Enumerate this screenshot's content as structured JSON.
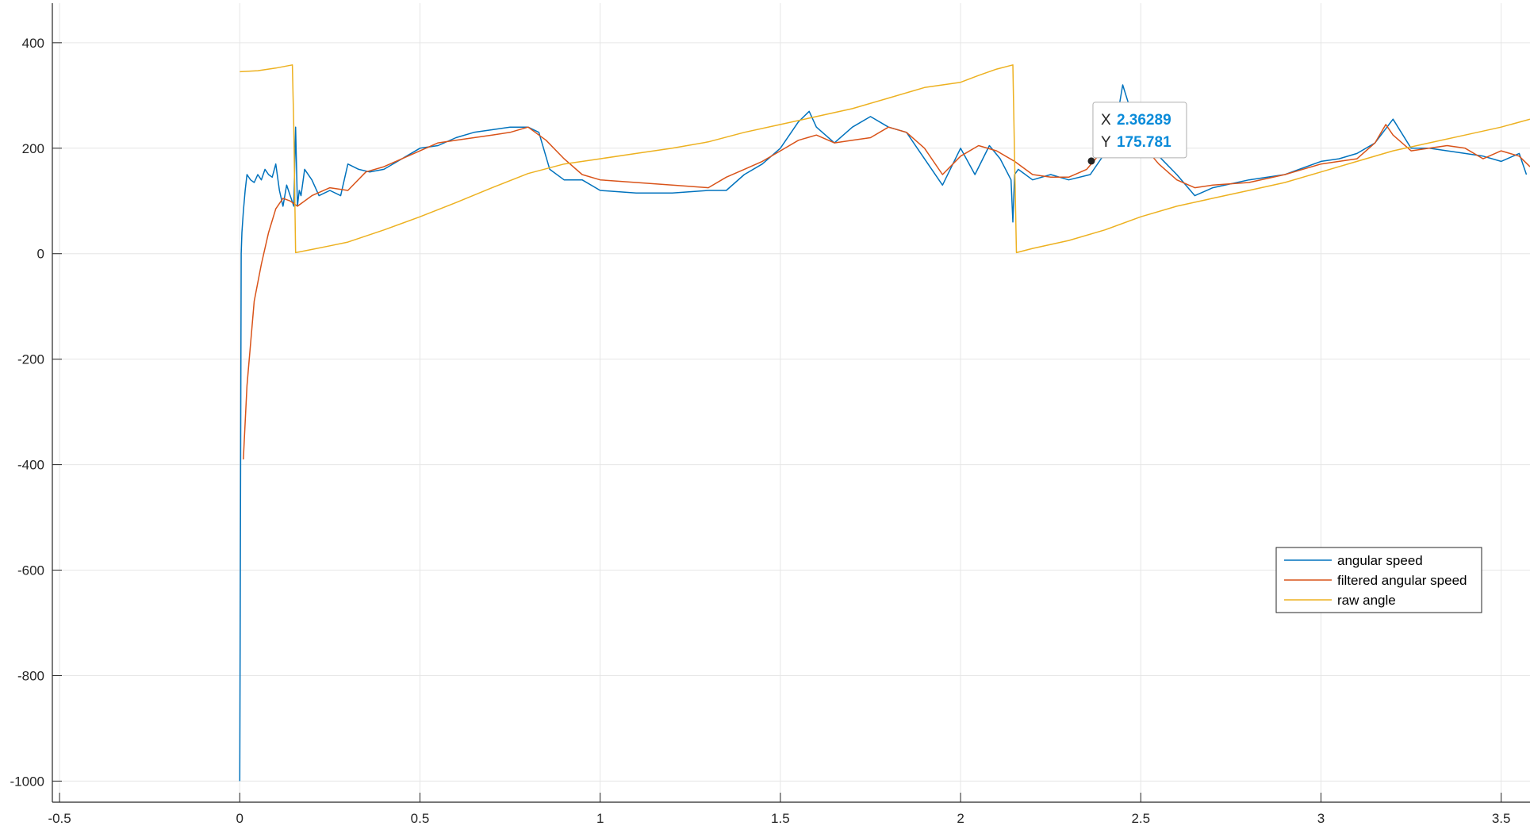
{
  "chart_data": {
    "type": "line",
    "title": "",
    "xlabel": "",
    "ylabel": "",
    "xlim": [
      -0.52,
      3.58
    ],
    "ylim": [
      -1040,
      475
    ],
    "grid": true,
    "x_ticks": [
      -0.5,
      0,
      0.5,
      1,
      1.5,
      2,
      2.5,
      3,
      3.5
    ],
    "x_tick_labels": [
      "-0.5",
      "0",
      "0.5",
      "1",
      "1.5",
      "2",
      "2.5",
      "3",
      "3.5"
    ],
    "y_ticks": [
      -1000,
      -800,
      -600,
      -400,
      -200,
      0,
      200,
      400
    ],
    "y_tick_labels": [
      "-1000",
      "-800",
      "-600",
      "-400",
      "-200",
      "0",
      "200",
      "400"
    ],
    "legend_position": "lower-right",
    "series": [
      {
        "name": "angular speed",
        "color": "#0072BD",
        "x": [
          0,
          0.002,
          0.004,
          0.006,
          0.01,
          0.015,
          0.02,
          0.03,
          0.04,
          0.05,
          0.06,
          0.07,
          0.08,
          0.09,
          0.1,
          0.11,
          0.12,
          0.13,
          0.14,
          0.15,
          0.155,
          0.16,
          0.165,
          0.17,
          0.18,
          0.2,
          0.22,
          0.25,
          0.28,
          0.3,
          0.33,
          0.36,
          0.4,
          0.45,
          0.5,
          0.55,
          0.6,
          0.65,
          0.7,
          0.75,
          0.8,
          0.83,
          0.86,
          0.9,
          0.95,
          1.0,
          1.1,
          1.2,
          1.3,
          1.35,
          1.4,
          1.45,
          1.5,
          1.55,
          1.58,
          1.6,
          1.65,
          1.7,
          1.75,
          1.8,
          1.85,
          1.88,
          1.92,
          1.95,
          2.0,
          2.04,
          2.08,
          2.11,
          2.14,
          2.145,
          2.15,
          2.16,
          2.2,
          2.25,
          2.3,
          2.36,
          2.4,
          2.43,
          2.45,
          2.5,
          2.55,
          2.6,
          2.65,
          2.7,
          2.8,
          2.9,
          3.0,
          3.05,
          3.1,
          3.15,
          3.2,
          3.25,
          3.3,
          3.4,
          3.45,
          3.5,
          3.55,
          3.57
        ],
        "y": [
          -1000,
          -500,
          0,
          40,
          80,
          120,
          150,
          140,
          135,
          150,
          140,
          160,
          150,
          145,
          170,
          120,
          90,
          130,
          110,
          90,
          240,
          90,
          120,
          110,
          160,
          140,
          110,
          120,
          110,
          170,
          160,
          155,
          160,
          180,
          200,
          205,
          220,
          230,
          235,
          240,
          240,
          230,
          160,
          140,
          140,
          120,
          115,
          115,
          120,
          120,
          150,
          170,
          200,
          250,
          270,
          240,
          210,
          240,
          260,
          240,
          230,
          200,
          160,
          130,
          200,
          150,
          205,
          180,
          140,
          60,
          150,
          160,
          140,
          150,
          140,
          150,
          190,
          240,
          320,
          210,
          185,
          150,
          110,
          125,
          140,
          150,
          175,
          180,
          190,
          210,
          255,
          200,
          200,
          190,
          185,
          175,
          190,
          150
        ]
      },
      {
        "name": "filtered angular speed",
        "color": "#D95319",
        "x": [
          0.01,
          0.02,
          0.04,
          0.06,
          0.08,
          0.1,
          0.12,
          0.14,
          0.16,
          0.2,
          0.25,
          0.3,
          0.35,
          0.4,
          0.45,
          0.5,
          0.55,
          0.6,
          0.65,
          0.7,
          0.75,
          0.8,
          0.85,
          0.9,
          0.95,
          1.0,
          1.1,
          1.2,
          1.3,
          1.35,
          1.4,
          1.45,
          1.5,
          1.55,
          1.6,
          1.65,
          1.7,
          1.75,
          1.8,
          1.85,
          1.9,
          1.95,
          2.0,
          2.05,
          2.1,
          2.15,
          2.2,
          2.25,
          2.3,
          2.35,
          2.4,
          2.43,
          2.46,
          2.5,
          2.55,
          2.6,
          2.65,
          2.7,
          2.8,
          2.9,
          3.0,
          3.05,
          3.1,
          3.15,
          3.18,
          3.2,
          3.25,
          3.3,
          3.35,
          3.4,
          3.45,
          3.5,
          3.55,
          3.58
        ],
        "y": [
          -390,
          -250,
          -90,
          -20,
          40,
          85,
          105,
          100,
          90,
          110,
          125,
          120,
          155,
          165,
          180,
          195,
          210,
          215,
          220,
          225,
          230,
          240,
          215,
          180,
          150,
          140,
          135,
          130,
          125,
          145,
          160,
          175,
          195,
          215,
          225,
          210,
          215,
          220,
          240,
          230,
          200,
          150,
          185,
          205,
          195,
          175,
          150,
          145,
          145,
          160,
          200,
          230,
          250,
          210,
          170,
          140,
          125,
          130,
          135,
          150,
          170,
          175,
          180,
          210,
          245,
          225,
          195,
          200,
          205,
          200,
          180,
          195,
          185,
          165
        ]
      },
      {
        "name": "raw angle",
        "color": "#EDB120",
        "x": [
          0.0,
          0.05,
          0.1,
          0.146,
          0.15,
          0.155,
          0.2,
          0.25,
          0.3,
          0.4,
          0.5,
          0.6,
          0.7,
          0.8,
          0.9,
          1.0,
          1.1,
          1.2,
          1.3,
          1.4,
          1.5,
          1.6,
          1.7,
          1.8,
          1.9,
          2.0,
          2.05,
          2.1,
          2.145,
          2.15,
          2.155,
          2.2,
          2.3,
          2.4,
          2.5,
          2.6,
          2.7,
          2.8,
          2.9,
          3.0,
          3.1,
          3.2,
          3.3,
          3.4,
          3.5,
          3.58
        ],
        "y": [
          345,
          347,
          352,
          358,
          240,
          2,
          8,
          15,
          22,
          45,
          70,
          97,
          125,
          152,
          170,
          180,
          190,
          200,
          212,
          230,
          245,
          260,
          275,
          295,
          315,
          325,
          338,
          350,
          358,
          180,
          2,
          10,
          25,
          45,
          70,
          90,
          105,
          120,
          135,
          155,
          175,
          195,
          210,
          225,
          240,
          255
        ]
      }
    ],
    "datatip": {
      "x_prefix": "X",
      "x_value": "2.36289",
      "y_prefix": "Y",
      "y_value": "175.781",
      "x": 2.36289,
      "y": 175.781
    }
  }
}
